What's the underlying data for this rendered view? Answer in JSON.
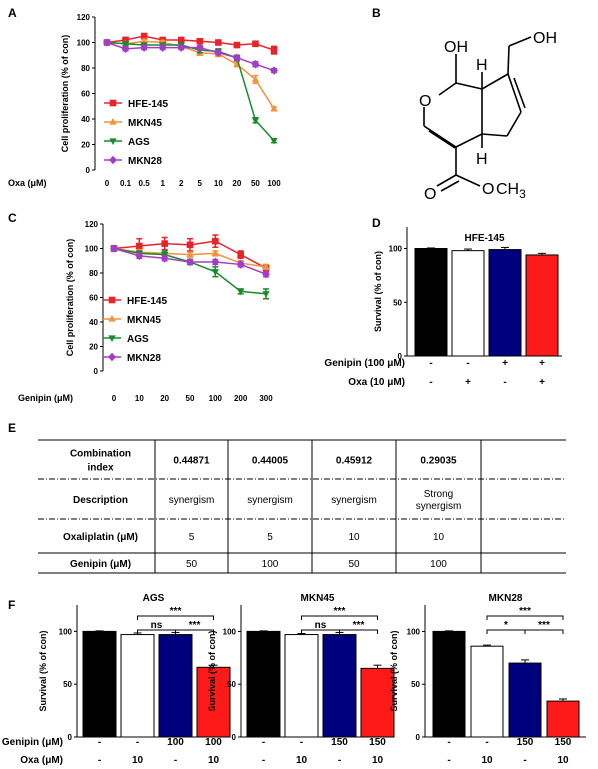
{
  "panel_labels": {
    "a": "A",
    "b": "B",
    "c": "C",
    "d": "D",
    "e": "E",
    "f": "F"
  },
  "chart_data": [
    {
      "id": "A",
      "type": "line",
      "x_label": "Oxa (μM)",
      "ylabel": "Cell proliferation (% of con)",
      "categories": [
        "0",
        "0.1",
        "0.5",
        "1",
        "2",
        "5",
        "10",
        "20",
        "50",
        "100"
      ],
      "ylim": [
        0,
        120
      ],
      "yticks": [
        "0",
        "20",
        "40",
        "60",
        "80",
        "100",
        "120"
      ],
      "legend_position": "lower-left",
      "series": [
        {
          "name": "HFE-145",
          "color": "#e8242a",
          "marker": "square",
          "values": [
            100,
            102,
            105,
            102,
            102,
            101,
            100,
            98,
            99,
            94
          ],
          "errors": [
            1.5,
            2,
            2,
            1.5,
            1.5,
            1.5,
            1.5,
            1.5,
            2,
            3
          ]
        },
        {
          "name": "MKN45",
          "color": "#f2923a",
          "marker": "triangle-up",
          "values": [
            100,
            99,
            101,
            100,
            97,
            92,
            91,
            83,
            71,
            48
          ],
          "errors": [
            1.5,
            1.5,
            1.5,
            1.5,
            1.5,
            2,
            2,
            2,
            3,
            1.5
          ]
        },
        {
          "name": "AGS",
          "color": "#198a2e",
          "marker": "triangle-down",
          "values": [
            100,
            99,
            98,
            98,
            98,
            94,
            93,
            88,
            39,
            23
          ],
          "errors": [
            1.5,
            1.5,
            1.5,
            1.5,
            1.5,
            2,
            2,
            2,
            2,
            1.5
          ]
        },
        {
          "name": "MKN28",
          "color": "#a23ec6",
          "marker": "diamond",
          "values": [
            100,
            95,
            96,
            96,
            96,
            96,
            92,
            88,
            83,
            78
          ],
          "errors": [
            1.5,
            1.5,
            1.5,
            1.5,
            1.5,
            1.5,
            1.5,
            1.5,
            2,
            1.5
          ]
        }
      ]
    },
    {
      "id": "C",
      "type": "line",
      "x_label": "Genipin (μM)",
      "ylabel": "Cell proliferation (% of con)",
      "categories": [
        "0",
        "10",
        "20",
        "50",
        "100",
        "200",
        "300"
      ],
      "ylim": [
        0,
        120
      ],
      "yticks": [
        "0",
        "20",
        "40",
        "60",
        "80",
        "100",
        "120"
      ],
      "legend_position": "lower-left",
      "series": [
        {
          "name": "HFE-145",
          "color": "#e8242a",
          "marker": "square",
          "values": [
            100,
            102,
            104,
            103,
            106,
            95,
            84
          ],
          "errors": [
            2,
            6,
            5,
            5,
            5,
            3,
            2
          ]
        },
        {
          "name": "MKN45",
          "color": "#f2923a",
          "marker": "triangle-up",
          "values": [
            100,
            97,
            96,
            95,
            96,
            88,
            85
          ],
          "errors": [
            2,
            2,
            2,
            2,
            2,
            2,
            2
          ]
        },
        {
          "name": "AGS",
          "color": "#198a2e",
          "marker": "triangle-down",
          "values": [
            100,
            96,
            95,
            89,
            81,
            65,
            63
          ],
          "errors": [
            2,
            2,
            3,
            2,
            4,
            2,
            4
          ]
        },
        {
          "name": "MKN28",
          "color": "#a23ec6",
          "marker": "diamond",
          "values": [
            100,
            94,
            92,
            89,
            89,
            87,
            79
          ],
          "errors": [
            2,
            2,
            2,
            2,
            2,
            2,
            2
          ]
        }
      ]
    },
    {
      "id": "D",
      "type": "bar",
      "title": "HFE-145",
      "ylabel": "Survival (% of con)",
      "ylim": [
        0,
        120
      ],
      "yticks": [
        "0",
        "50",
        "100"
      ],
      "bars": [
        {
          "value": 100,
          "error": 0.5,
          "color": "#000000"
        },
        {
          "value": 98,
          "error": 1.5,
          "color": "#ffffff"
        },
        {
          "value": 99,
          "error": 2,
          "color": "#00007f"
        },
        {
          "value": 94,
          "error": 1.5,
          "color": "#ff1a1a"
        }
      ],
      "conditions": [
        {
          "label": "Genipin (100 μM)",
          "values": [
            "-",
            "-",
            "+",
            "+"
          ]
        },
        {
          "label": "Oxa (10 μM)",
          "values": [
            "-",
            "+",
            "-",
            "+"
          ]
        }
      ]
    },
    {
      "id": "F1",
      "type": "bar",
      "title": "AGS",
      "ylabel": "Survival (% of con)",
      "ylim": [
        0,
        125
      ],
      "yticks": [
        "0",
        "50",
        "100"
      ],
      "bars": [
        {
          "value": 100,
          "error": 0.5,
          "color": "#000000"
        },
        {
          "value": 97,
          "error": 1.5,
          "color": "#ffffff"
        },
        {
          "value": 97,
          "error": 2,
          "color": "#00007f"
        },
        {
          "value": 66,
          "error": 2,
          "color": "#ff1a1a"
        }
      ],
      "conditions": [
        {
          "label": "Genipin (μM)",
          "values": [
            "-",
            "-",
            "100",
            "100"
          ]
        },
        {
          "label": "Oxa (μM)",
          "values": [
            "-",
            "10",
            "-",
            "10"
          ]
        }
      ],
      "significance": [
        {
          "from": 1,
          "to": 3,
          "text": "***",
          "level": 2
        },
        {
          "from": 1,
          "to": 2,
          "text": "ns",
          "level": 1
        },
        {
          "from": 2,
          "to": 3,
          "text": "***",
          "level": 1
        }
      ]
    },
    {
      "id": "F2",
      "type": "bar",
      "title": "MKN45",
      "ylabel": "Survival (% of con)",
      "ylim": [
        0,
        125
      ],
      "yticks": [
        "0",
        "50",
        "100"
      ],
      "bars": [
        {
          "value": 100,
          "error": 0.5,
          "color": "#000000"
        },
        {
          "value": 97,
          "error": 1,
          "color": "#ffffff"
        },
        {
          "value": 97,
          "error": 2,
          "color": "#00007f"
        },
        {
          "value": 65,
          "error": 3,
          "color": "#ff1a1a"
        }
      ],
      "conditions": [
        {
          "label": "Genipin (μM)",
          "values": [
            "-",
            "-",
            "150",
            "150"
          ]
        },
        {
          "label": "Oxa (μM)",
          "values": [
            "-",
            "10",
            "-",
            "10"
          ]
        }
      ],
      "significance": [
        {
          "from": 1,
          "to": 3,
          "text": "***",
          "level": 2
        },
        {
          "from": 1,
          "to": 2,
          "text": "ns",
          "level": 1
        },
        {
          "from": 2,
          "to": 3,
          "text": "***",
          "level": 1
        }
      ]
    },
    {
      "id": "F3",
      "type": "bar",
      "title": "MKN28",
      "ylabel": "Survival (% of con)",
      "ylim": [
        0,
        125
      ],
      "yticks": [
        "0",
        "50",
        "100"
      ],
      "bars": [
        {
          "value": 100,
          "error": 0.5,
          "color": "#000000"
        },
        {
          "value": 86,
          "error": 1,
          "color": "#ffffff"
        },
        {
          "value": 70,
          "error": 3,
          "color": "#00007f"
        },
        {
          "value": 34,
          "error": 2,
          "color": "#ff1a1a"
        }
      ],
      "conditions": [
        {
          "label": "",
          "values": [
            "-",
            "-",
            "150",
            "150"
          ]
        },
        {
          "label": "",
          "values": [
            "-",
            "10",
            "-",
            "10"
          ]
        }
      ],
      "significance": [
        {
          "from": 1,
          "to": 3,
          "text": "***",
          "level": 2
        },
        {
          "from": 1,
          "to": 2,
          "text": "*",
          "level": 1
        },
        {
          "from": 2,
          "to": 3,
          "text": "***",
          "level": 1
        }
      ]
    }
  ],
  "structure": {
    "oh_top": "OH",
    "oh_right": "OH",
    "h_upper": "H",
    "h_lower": "H",
    "ring_o": "O",
    "carbonyl_o": "O",
    "ester_o": "O",
    "methyl": "CH",
    "methyl_sub": "3"
  },
  "table": {
    "rows": [
      {
        "header": [
          "Combination",
          "index"
        ],
        "values": [
          [
            "0.44871"
          ],
          [
            "0.44005"
          ],
          [
            "0.45912"
          ],
          [
            "0.29035"
          ]
        ],
        "bold": true
      },
      {
        "header": [
          "Description"
        ],
        "values": [
          [
            "synergism"
          ],
          [
            "synergism"
          ],
          [
            "synergism"
          ],
          [
            "Strong",
            "synergism"
          ]
        ],
        "bold": false
      },
      {
        "header": [
          "Oxaliplatin (μM)"
        ],
        "values": [
          [
            "5"
          ],
          [
            "5"
          ],
          [
            "10"
          ],
          [
            "10"
          ]
        ],
        "bold": false
      },
      {
        "header": [
          "Genipin (μM)"
        ],
        "values": [
          [
            "50"
          ],
          [
            "100"
          ],
          [
            "50"
          ],
          [
            "100"
          ]
        ],
        "bold": false
      }
    ]
  }
}
